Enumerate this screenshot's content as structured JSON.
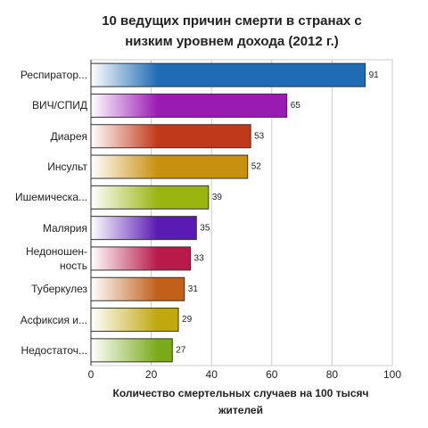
{
  "chart_data": {
    "type": "bar",
    "horizontal": true,
    "title": "10 ведущих причин смерти в странах с низким уровнем дохода (2012 г.)",
    "x_label": "Количество смертельных случаев на 100 тысяч жителей",
    "categories": [
      "Респиратор...",
      "ВИЧ/СПИД",
      "Диарея",
      "Инсульт",
      "Ишемическа...",
      "Малярия",
      "Недоношен-\nность",
      "Туберкулез",
      "Асфиксия и...",
      "Недостаточ..."
    ],
    "values": [
      91,
      65,
      53,
      52,
      39,
      35,
      33,
      31,
      29,
      27
    ],
    "colors": [
      "#1f6cb4",
      "#9a1ab4",
      "#c0391a",
      "#c8900f",
      "#9ab50f",
      "#5a1ab4",
      "#b81a4a",
      "#c0601a",
      "#c0a80f",
      "#7aaa1a"
    ],
    "xlim": [
      0,
      100
    ],
    "xticks": [
      0,
      20,
      40,
      60,
      80,
      100
    ],
    "grid": true
  }
}
